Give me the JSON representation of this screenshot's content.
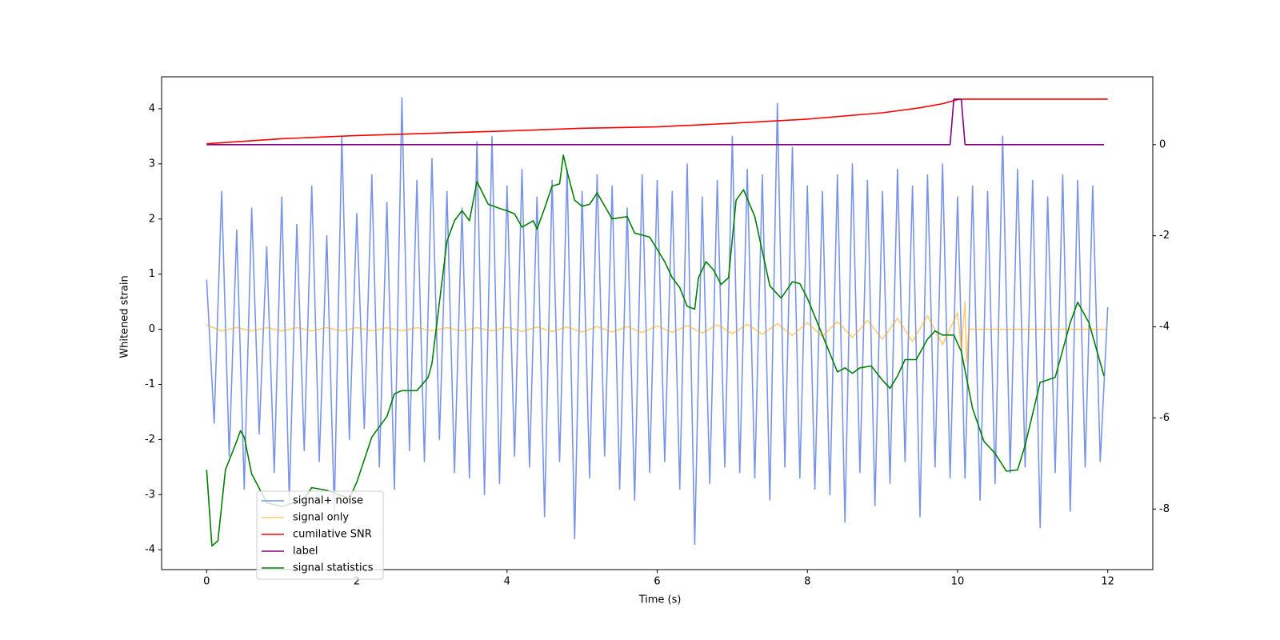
{
  "chart_data": {
    "type": "line",
    "xlabel": "Time (s)",
    "ylabel": "Whitened strain",
    "xlim": [
      -0.6,
      12.6
    ],
    "xticks": [
      0,
      2,
      4,
      6,
      8,
      10,
      12
    ],
    "ylim": [
      -4.36,
      4.58
    ],
    "yticks": [
      -4,
      -3,
      -2,
      -1,
      0,
      1,
      2,
      3,
      4
    ],
    "y2lim": [
      -9.33,
      1.49
    ],
    "y2ticks": [
      -8,
      -6,
      -4,
      -2,
      0
    ],
    "legend": "lower left",
    "series": [
      {
        "name": "signal+ noise",
        "color": "#6a88e4",
        "axis": "y",
        "x": [
          0,
          0.1,
          0.2,
          0.3,
          0.4,
          0.5,
          0.6,
          0.7,
          0.8,
          0.9,
          1,
          1.1,
          1.2,
          1.3,
          1.4,
          1.5,
          1.6,
          1.7,
          1.8,
          1.9,
          2,
          2.1,
          2.2,
          2.3,
          2.4,
          2.5,
          2.6,
          2.7,
          2.8,
          2.9,
          3,
          3.1,
          3.2,
          3.3,
          3.4,
          3.5,
          3.6,
          3.7,
          3.8,
          3.9,
          4,
          4.1,
          4.2,
          4.3,
          4.4,
          4.5,
          4.6,
          4.7,
          4.8,
          4.9,
          5,
          5.1,
          5.2,
          5.3,
          5.4,
          5.5,
          5.6,
          5.7,
          5.8,
          5.9,
          6,
          6.1,
          6.2,
          6.3,
          6.4,
          6.5,
          6.6,
          6.7,
          6.8,
          6.9,
          7,
          7.1,
          7.2,
          7.3,
          7.4,
          7.5,
          7.6,
          7.7,
          7.8,
          7.9,
          8,
          8.1,
          8.2,
          8.3,
          8.4,
          8.5,
          8.6,
          8.7,
          8.8,
          8.9,
          9,
          9.1,
          9.2,
          9.3,
          9.4,
          9.5,
          9.6,
          9.7,
          9.8,
          9.9,
          10,
          10.1,
          10.2,
          10.3,
          10.4,
          10.5,
          10.6,
          10.7,
          10.8,
          10.9,
          11,
          11.1,
          11.2,
          11.3,
          11.4,
          11.5,
          11.6,
          11.7,
          11.8,
          11.9,
          12
        ],
        "values": [
          0.9,
          -1.7,
          2.5,
          -2.3,
          1.8,
          -2.9,
          2.2,
          -1.9,
          1.5,
          -2.6,
          2.4,
          -3.1,
          1.9,
          -2.2,
          2.6,
          -2.4,
          1.7,
          -3.3,
          3.5,
          -2.0,
          2.1,
          -1.8,
          2.8,
          -2.5,
          2.3,
          -2.9,
          4.2,
          -2.2,
          2.7,
          -2.4,
          3.1,
          -2.0,
          2.5,
          -2.6,
          2.2,
          -2.7,
          3.4,
          -3.0,
          3.5,
          -2.8,
          2.6,
          -2.3,
          2.9,
          -2.5,
          2.4,
          -3.4,
          2.7,
          -2.4,
          2.9,
          -3.8,
          2.5,
          -2.7,
          2.8,
          -2.3,
          2.6,
          -2.9,
          2.2,
          -3.1,
          2.8,
          -2.6,
          2.7,
          -2.4,
          2.5,
          -2.9,
          3.0,
          -3.9,
          2.4,
          -2.8,
          2.7,
          -2.5,
          3.5,
          -2.6,
          2.9,
          -2.7,
          2.8,
          -3.1,
          4.1,
          -2.5,
          3.3,
          -2.7,
          2.6,
          -2.9,
          2.5,
          -3.0,
          2.8,
          -3.5,
          3.0,
          -2.6,
          2.7,
          -3.2,
          2.5,
          -2.8,
          2.9,
          -2.4,
          2.6,
          -3.4,
          2.8,
          -2.5,
          3.0,
          -2.7,
          2.4,
          -2.7,
          2.6,
          -3.1,
          2.5,
          -2.8,
          3.5,
          -2.6,
          2.9,
          -2.5,
          2.7,
          -3.6,
          2.4,
          -2.6,
          2.8,
          -3.3,
          2.7,
          -2.5,
          2.6,
          -2.4,
          0.4
        ]
      },
      {
        "name": "signal only",
        "color": "#ffa500",
        "axis": "y",
        "x": [
          0,
          0.2,
          0.4,
          0.6,
          0.8,
          1,
          1.2,
          1.4,
          1.6,
          1.8,
          2,
          2.2,
          2.4,
          2.6,
          2.8,
          3,
          3.2,
          3.4,
          3.6,
          3.8,
          4,
          4.2,
          4.4,
          4.6,
          4.8,
          5,
          5.2,
          5.4,
          5.6,
          5.8,
          6,
          6.2,
          6.4,
          6.6,
          6.8,
          7,
          7.2,
          7.4,
          7.6,
          7.8,
          8,
          8.2,
          8.4,
          8.6,
          8.8,
          9,
          9.2,
          9.4,
          9.6,
          9.8,
          10,
          10.05,
          10.1,
          10.12,
          10.15,
          12
        ],
        "values": [
          0.08,
          -0.03,
          0.03,
          -0.03,
          0.03,
          -0.03,
          0.03,
          -0.03,
          0.03,
          -0.03,
          0.03,
          -0.03,
          0.03,
          -0.03,
          0.03,
          -0.03,
          0.03,
          -0.03,
          0.03,
          -0.03,
          0.04,
          -0.04,
          0.04,
          -0.04,
          0.04,
          -0.05,
          0.05,
          -0.05,
          0.05,
          -0.06,
          0.06,
          -0.06,
          0.07,
          -0.07,
          0.08,
          -0.08,
          0.09,
          -0.09,
          0.1,
          -0.11,
          0.12,
          -0.13,
          0.14,
          -0.15,
          0.16,
          -0.18,
          0.2,
          -0.22,
          0.25,
          -0.28,
          0.3,
          -0.35,
          0.5,
          -0.6,
          0,
          0
        ]
      },
      {
        "name": "cumilative SNR",
        "color": "#ff0000",
        "axis": "y2",
        "x": [
          0,
          1,
          2,
          3,
          4,
          5,
          6,
          7,
          8,
          9,
          9.5,
          9.8,
          10,
          10.1,
          12
        ],
        "values": [
          0.02,
          0.13,
          0.2,
          0.25,
          0.3,
          0.36,
          0.39,
          0.47,
          0.56,
          0.7,
          0.81,
          0.9,
          0.99,
          1.0,
          1.0
        ]
      },
      {
        "name": "label",
        "color": "#800080",
        "axis": "y2",
        "x": [
          0,
          9.9,
          9.95,
          10.05,
          10.1,
          11.95
        ],
        "values": [
          0,
          0,
          1,
          1,
          0,
          0
        ]
      },
      {
        "name": "signal statistics",
        "color": "#008000",
        "axis": "y2",
        "x": [
          0,
          0.07,
          0.15,
          0.25,
          0.4,
          0.45,
          0.5,
          0.6,
          0.8,
          1.0,
          1.3,
          1.4,
          1.6,
          1.9,
          2.0,
          2.2,
          2.4,
          2.5,
          2.6,
          2.8,
          2.95,
          3.0,
          3.1,
          3.2,
          3.3,
          3.4,
          3.5,
          3.6,
          3.75,
          3.9,
          4.0,
          4.1,
          4.2,
          4.35,
          4.4,
          4.5,
          4.6,
          4.7,
          4.75,
          4.8,
          4.9,
          5.0,
          5.1,
          5.2,
          5.4,
          5.6,
          5.7,
          5.9,
          6.1,
          6.2,
          6.3,
          6.4,
          6.5,
          6.55,
          6.65,
          6.75,
          6.85,
          6.95,
          7.05,
          7.15,
          7.3,
          7.5,
          7.65,
          7.8,
          7.9,
          8.0,
          8.2,
          8.4,
          8.5,
          8.6,
          8.7,
          8.85,
          9.0,
          9.1,
          9.2,
          9.3,
          9.45,
          9.6,
          9.7,
          9.8,
          9.95,
          10.05,
          10.2,
          10.35,
          10.5,
          10.65,
          10.8,
          10.9,
          11.1,
          11.3,
          11.5,
          11.6,
          11.75,
          11.95
        ],
        "values": [
          -7.14,
          -8.81,
          -8.7,
          -7.14,
          -6.51,
          -6.28,
          -6.42,
          -7.23,
          -7.86,
          -7.95,
          -7.77,
          -7.53,
          -7.59,
          -7.77,
          -7.41,
          -6.42,
          -5.97,
          -5.47,
          -5.4,
          -5.4,
          -5.11,
          -4.81,
          -3.46,
          -2.12,
          -1.67,
          -1.45,
          -1.67,
          -0.81,
          -1.31,
          -1.4,
          -1.45,
          -1.52,
          -1.81,
          -1.67,
          -1.85,
          -1.4,
          -0.91,
          -0.86,
          -0.23,
          -0.59,
          -1.22,
          -1.35,
          -1.31,
          -1.06,
          -1.63,
          -1.58,
          -1.94,
          -2.03,
          -2.57,
          -2.92,
          -3.14,
          -3.55,
          -3.61,
          -2.92,
          -2.57,
          -2.75,
          -3.07,
          -2.92,
          -1.22,
          -0.99,
          -1.58,
          -3.1,
          -3.37,
          -3.01,
          -3.05,
          -3.37,
          -4.18,
          -4.99,
          -4.9,
          -5.02,
          -4.9,
          -4.86,
          -5.17,
          -5.35,
          -5.08,
          -4.72,
          -4.72,
          -4.27,
          -4.09,
          -4.18,
          -4.18,
          -4.54,
          -5.79,
          -6.51,
          -6.78,
          -7.17,
          -7.14,
          -6.6,
          -5.22,
          -5.11,
          -3.91,
          -3.46,
          -3.91,
          -5.08
        ]
      }
    ]
  }
}
